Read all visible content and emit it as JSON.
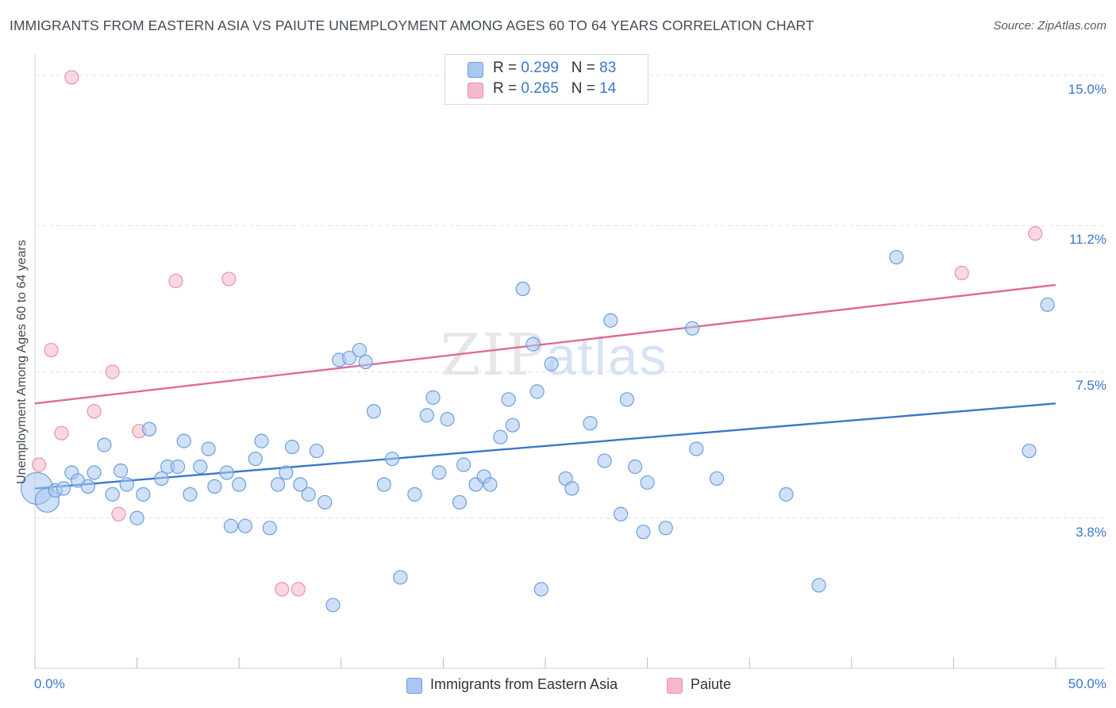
{
  "title": "IMMIGRANTS FROM EASTERN ASIA VS PAIUTE UNEMPLOYMENT AMONG AGES 60 TO 64 YEARS CORRELATION CHART",
  "source": "Source: ZipAtlas.com",
  "watermark": {
    "zip": "ZIP",
    "atlas": "atlas"
  },
  "legend_top": [
    {
      "r_label": "R = ",
      "r_value": "0.299",
      "n_label": "N = ",
      "n_value": "83",
      "color": "#a9c8f0"
    },
    {
      "r_label": "R = ",
      "r_value": "0.265",
      "n_label": "N = ",
      "n_value": "14",
      "color": "#f6b8cb"
    }
  ],
  "legend_bottom": [
    "Immigrants from Eastern Asia",
    "Paiute"
  ],
  "colors": {
    "blue_fill": "#a9c8f0",
    "blue_stroke": "#6a9fe0",
    "blue_line": "#3a78c9",
    "pink_fill": "#f6b8cb",
    "pink_stroke": "#e891ab",
    "pink_line": "#e06b92",
    "grid": "#dde1e6",
    "axis_text": "#3a78c9"
  },
  "chart_data": {
    "type": "scatter",
    "title": "IMMIGRANTS FROM EASTERN ASIA VS PAIUTE UNEMPLOYMENT AMONG AGES 60 TO 64 YEARS CORRELATION CHART",
    "xlabel": "",
    "ylabel": "Unemployment Among Ages 60 to 64 years",
    "xlim": [
      0,
      50
    ],
    "ylim": [
      0,
      15.3
    ],
    "x_tick_labels": [
      "0.0%",
      "50.0%"
    ],
    "y_ticks": [
      3.8,
      7.5,
      11.2,
      15.0
    ],
    "y_tick_labels": [
      "3.8%",
      "7.5%",
      "11.2%",
      "15.0%"
    ],
    "series": [
      {
        "name": "Immigrants from Eastern Asia",
        "r": 0.299,
        "n": 83,
        "trend": {
          "x": [
            0,
            50
          ],
          "y": [
            4.55,
            6.7
          ]
        },
        "points": [
          {
            "x": 0.1,
            "y": 4.55,
            "s": 3
          },
          {
            "x": 0.6,
            "y": 4.25,
            "s": 2
          },
          {
            "x": 1.0,
            "y": 4.5,
            "s": 1
          },
          {
            "x": 1.4,
            "y": 4.55,
            "s": 1
          },
          {
            "x": 1.8,
            "y": 4.95,
            "s": 1
          },
          {
            "x": 2.1,
            "y": 4.75,
            "s": 1
          },
          {
            "x": 2.6,
            "y": 4.6,
            "s": 1
          },
          {
            "x": 2.9,
            "y": 4.95,
            "s": 1
          },
          {
            "x": 3.4,
            "y": 5.65,
            "s": 1
          },
          {
            "x": 3.8,
            "y": 4.4,
            "s": 1
          },
          {
            "x": 4.2,
            "y": 5.0,
            "s": 1
          },
          {
            "x": 4.5,
            "y": 4.65,
            "s": 1
          },
          {
            "x": 5.0,
            "y": 3.8,
            "s": 1
          },
          {
            "x": 5.3,
            "y": 4.4,
            "s": 1
          },
          {
            "x": 5.6,
            "y": 6.05,
            "s": 1
          },
          {
            "x": 6.2,
            "y": 4.8,
            "s": 1
          },
          {
            "x": 6.5,
            "y": 5.1,
            "s": 1
          },
          {
            "x": 7.0,
            "y": 5.1,
            "s": 1
          },
          {
            "x": 7.3,
            "y": 5.75,
            "s": 1
          },
          {
            "x": 7.6,
            "y": 4.4,
            "s": 1
          },
          {
            "x": 8.1,
            "y": 5.1,
            "s": 1
          },
          {
            "x": 8.5,
            "y": 5.55,
            "s": 1
          },
          {
            "x": 8.8,
            "y": 4.6,
            "s": 1
          },
          {
            "x": 9.4,
            "y": 4.95,
            "s": 1
          },
          {
            "x": 9.6,
            "y": 3.6,
            "s": 1
          },
          {
            "x": 10.0,
            "y": 4.65,
            "s": 1
          },
          {
            "x": 10.3,
            "y": 3.6,
            "s": 1
          },
          {
            "x": 10.8,
            "y": 5.3,
            "s": 1
          },
          {
            "x": 11.1,
            "y": 5.75,
            "s": 1
          },
          {
            "x": 11.5,
            "y": 3.55,
            "s": 1
          },
          {
            "x": 11.9,
            "y": 4.65,
            "s": 1
          },
          {
            "x": 12.3,
            "y": 4.95,
            "s": 1
          },
          {
            "x": 12.6,
            "y": 5.6,
            "s": 1
          },
          {
            "x": 13.0,
            "y": 4.65,
            "s": 1
          },
          {
            "x": 13.4,
            "y": 4.4,
            "s": 1
          },
          {
            "x": 13.8,
            "y": 5.5,
            "s": 1
          },
          {
            "x": 14.2,
            "y": 4.2,
            "s": 1
          },
          {
            "x": 14.6,
            "y": 1.6,
            "s": 1
          },
          {
            "x": 14.9,
            "y": 7.8,
            "s": 1
          },
          {
            "x": 15.4,
            "y": 7.85,
            "s": 1
          },
          {
            "x": 15.9,
            "y": 8.05,
            "s": 1
          },
          {
            "x": 16.2,
            "y": 7.75,
            "s": 1
          },
          {
            "x": 16.6,
            "y": 6.5,
            "s": 1
          },
          {
            "x": 17.1,
            "y": 4.65,
            "s": 1
          },
          {
            "x": 17.5,
            "y": 5.3,
            "s": 1
          },
          {
            "x": 17.9,
            "y": 2.3,
            "s": 1
          },
          {
            "x": 18.6,
            "y": 4.4,
            "s": 1
          },
          {
            "x": 19.2,
            "y": 6.4,
            "s": 1
          },
          {
            "x": 19.5,
            "y": 6.85,
            "s": 1
          },
          {
            "x": 19.8,
            "y": 4.95,
            "s": 1
          },
          {
            "x": 20.2,
            "y": 6.3,
            "s": 1
          },
          {
            "x": 20.8,
            "y": 4.2,
            "s": 1
          },
          {
            "x": 21.0,
            "y": 5.15,
            "s": 1
          },
          {
            "x": 21.6,
            "y": 4.65,
            "s": 1
          },
          {
            "x": 22.0,
            "y": 4.85,
            "s": 1
          },
          {
            "x": 22.3,
            "y": 4.65,
            "s": 1
          },
          {
            "x": 22.8,
            "y": 5.85,
            "s": 1
          },
          {
            "x": 23.2,
            "y": 6.8,
            "s": 1
          },
          {
            "x": 23.4,
            "y": 6.15,
            "s": 1
          },
          {
            "x": 23.9,
            "y": 9.6,
            "s": 1
          },
          {
            "x": 24.4,
            "y": 8.2,
            "s": 1
          },
          {
            "x": 24.8,
            "y": 2.0,
            "s": 1
          },
          {
            "x": 24.6,
            "y": 7.0,
            "s": 1
          },
          {
            "x": 25.3,
            "y": 7.7,
            "s": 1
          },
          {
            "x": 26.0,
            "y": 4.8,
            "s": 1
          },
          {
            "x": 26.3,
            "y": 4.55,
            "s": 1
          },
          {
            "x": 27.2,
            "y": 6.2,
            "s": 1
          },
          {
            "x": 27.9,
            "y": 5.25,
            "s": 1
          },
          {
            "x": 28.2,
            "y": 8.8,
            "s": 1
          },
          {
            "x": 28.7,
            "y": 3.9,
            "s": 1
          },
          {
            "x": 29.0,
            "y": 6.8,
            "s": 1
          },
          {
            "x": 29.4,
            "y": 5.1,
            "s": 1
          },
          {
            "x": 29.8,
            "y": 3.45,
            "s": 1
          },
          {
            "x": 30.0,
            "y": 4.7,
            "s": 1
          },
          {
            "x": 30.9,
            "y": 3.55,
            "s": 1
          },
          {
            "x": 32.2,
            "y": 8.6,
            "s": 1
          },
          {
            "x": 32.4,
            "y": 5.55,
            "s": 1
          },
          {
            "x": 33.4,
            "y": 4.8,
            "s": 1
          },
          {
            "x": 36.8,
            "y": 4.4,
            "s": 1
          },
          {
            "x": 38.4,
            "y": 2.1,
            "s": 1
          },
          {
            "x": 42.2,
            "y": 10.4,
            "s": 1
          },
          {
            "x": 48.7,
            "y": 5.5,
            "s": 1
          },
          {
            "x": 49.6,
            "y": 9.2,
            "s": 1
          }
        ]
      },
      {
        "name": "Paiute",
        "r": 0.265,
        "n": 14,
        "trend": {
          "x": [
            0,
            50
          ],
          "y": [
            6.7,
            9.7
          ]
        },
        "points": [
          {
            "x": 0.2,
            "y": 5.15,
            "s": 1
          },
          {
            "x": 0.8,
            "y": 8.05,
            "s": 1
          },
          {
            "x": 1.3,
            "y": 5.95,
            "s": 1
          },
          {
            "x": 1.8,
            "y": 14.95,
            "s": 1
          },
          {
            "x": 2.9,
            "y": 6.5,
            "s": 1
          },
          {
            "x": 3.8,
            "y": 7.5,
            "s": 1
          },
          {
            "x": 4.1,
            "y": 3.9,
            "s": 1
          },
          {
            "x": 5.1,
            "y": 6.0,
            "s": 1
          },
          {
            "x": 6.9,
            "y": 9.8,
            "s": 1
          },
          {
            "x": 9.5,
            "y": 9.85,
            "s": 1
          },
          {
            "x": 12.1,
            "y": 2.0,
            "s": 1
          },
          {
            "x": 12.9,
            "y": 2.0,
            "s": 1
          },
          {
            "x": 45.4,
            "y": 10.0,
            "s": 1
          },
          {
            "x": 49.0,
            "y": 11.0,
            "s": 1
          }
        ]
      }
    ]
  }
}
